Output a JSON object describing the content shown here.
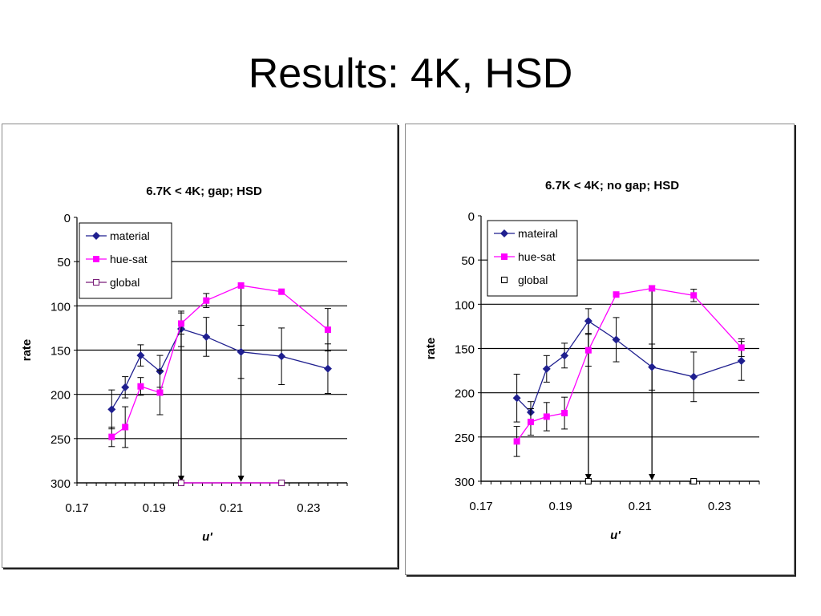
{
  "slide": {
    "title": "Results: 4K, HSD"
  },
  "chart_data": [
    {
      "type": "line",
      "title": "6.7K < 4K; gap; HSD",
      "xlabel": "u'",
      "ylabel": "rate",
      "xlim": [
        0.17,
        0.24
      ],
      "ylim": [
        0,
        300
      ],
      "y_inverted": true,
      "x_ticks": [
        "0.17",
        "0.19",
        "0.21",
        "0.23"
      ],
      "y_ticks": [
        "0",
        "50",
        "100",
        "150",
        "200",
        "250",
        "300"
      ],
      "grid": "horizontal",
      "legend": "top-left",
      "series": [
        {
          "name": "material",
          "marker": "diamond",
          "color": "#1f1f8f",
          "x": [
            0.179,
            0.1825,
            0.1865,
            0.1915,
            0.197,
            0.2035,
            0.2125,
            0.223,
            0.235
          ],
          "y": [
            217,
            192,
            156,
            174,
            126,
            135,
            152,
            157,
            171
          ],
          "err": [
            22,
            12,
            12,
            18,
            20,
            22,
            30,
            32,
            28
          ]
        },
        {
          "name": "hue-sat",
          "marker": "square",
          "color": "#ff00ff",
          "x": [
            0.179,
            0.1825,
            0.1865,
            0.1915,
            0.197,
            0.2035,
            0.2125,
            0.223,
            0.235
          ],
          "y": [
            248,
            237,
            191,
            198,
            120,
            94,
            77,
            84,
            127
          ],
          "err": [
            11,
            23,
            10,
            25,
            12,
            8,
            0,
            0,
            24
          ]
        },
        {
          "name": "global",
          "marker": "open-square",
          "color": "#7a1f7a",
          "line_color": "#ff00ff",
          "x": [
            0.197,
            0.223
          ],
          "y": [
            300,
            300
          ]
        }
      ],
      "arrows": [
        {
          "x": 0.197,
          "from_y": 120,
          "to_y": 300
        },
        {
          "x": 0.2125,
          "from_y": 77,
          "to_y": 300
        }
      ]
    },
    {
      "type": "line",
      "title": "6.7K < 4K; no gap; HSD",
      "xlabel": "u'",
      "ylabel": "rate",
      "xlim": [
        0.17,
        0.24
      ],
      "ylim": [
        0,
        300
      ],
      "y_inverted": true,
      "x_ticks": [
        "0.17",
        "0.19",
        "0.21",
        "0.23"
      ],
      "y_ticks": [
        "0",
        "50",
        "100",
        "150",
        "200",
        "250",
        "300"
      ],
      "grid": "horizontal",
      "legend": "top-left",
      "series": [
        {
          "name": "mateiral",
          "marker": "diamond",
          "color": "#1f1f8f",
          "x": [
            0.179,
            0.1825,
            0.1865,
            0.191,
            0.197,
            0.204,
            0.213,
            0.2235,
            0.2355
          ],
          "y": [
            206,
            222,
            173,
            158,
            119,
            140,
            171,
            182,
            164
          ],
          "err": [
            27,
            12,
            15,
            14,
            14,
            25,
            26,
            28,
            22
          ]
        },
        {
          "name": "hue-sat",
          "marker": "square",
          "color": "#ff00ff",
          "x": [
            0.179,
            0.1825,
            0.1865,
            0.191,
            0.197,
            0.204,
            0.213,
            0.2235,
            0.2355
          ],
          "y": [
            255,
            233,
            227,
            223,
            152,
            89,
            82,
            90,
            149
          ],
          "err": [
            17,
            15,
            16,
            18,
            18,
            0,
            3,
            7,
            10
          ]
        },
        {
          "name": "global",
          "marker": "open-square",
          "color": "#000000",
          "x": [
            0.197,
            0.2235
          ],
          "y": [
            300,
            300
          ]
        }
      ],
      "arrows": [
        {
          "x": 0.197,
          "from_y": 119,
          "to_y": 300
        },
        {
          "x": 0.213,
          "from_y": 82,
          "to_y": 300
        }
      ]
    }
  ]
}
